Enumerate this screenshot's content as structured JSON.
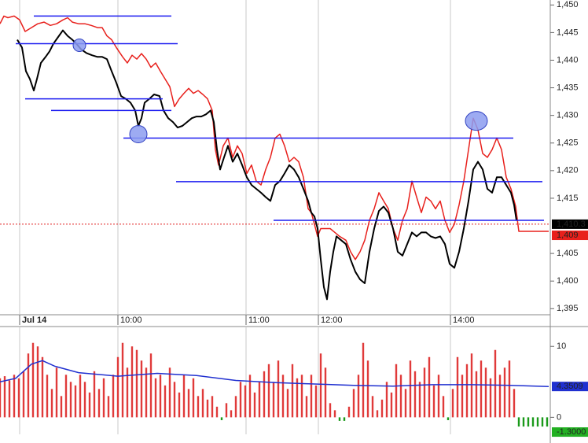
{
  "chart_data": [
    {
      "type": "line",
      "xlim": [
        0,
        350
      ],
      "ylim": [
        1393.9,
        1450.9
      ],
      "xticks": [
        {
          "value": 12.5,
          "label": "Jul 14"
        },
        {
          "value": 75,
          "label": "10:00"
        },
        {
          "value": 156.5,
          "label": "11:00"
        },
        {
          "value": 202.5,
          "label": "12:00"
        },
        {
          "value": 286.5,
          "label": "14:00"
        }
      ],
      "yticks": [
        {
          "value": 1395,
          "label": "1,395"
        },
        {
          "value": 1400,
          "label": "1,400"
        },
        {
          "value": 1405,
          "label": "1,405"
        },
        {
          "value": 1415,
          "label": "1,415"
        },
        {
          "value": 1420,
          "label": "1,420"
        },
        {
          "value": 1425,
          "label": "1,425"
        },
        {
          "value": 1430,
          "label": "1,430"
        },
        {
          "value": 1435,
          "label": "1,435"
        },
        {
          "value": 1440,
          "label": "1,440"
        },
        {
          "value": 1445,
          "label": "1,445"
        },
        {
          "value": 1450,
          "label": "1,450"
        }
      ],
      "grid": true,
      "series": [
        {
          "color": "#000000",
          "x": [
            11,
            14,
            16.5,
            19,
            21.5,
            23.5,
            26,
            29,
            31.5,
            34,
            37,
            40,
            43,
            46,
            48.5,
            51.5,
            55,
            58.5,
            62,
            65,
            68,
            71,
            74,
            77,
            80,
            83,
            86,
            88,
            90,
            92,
            95,
            98,
            101.5,
            104,
            107,
            110,
            113,
            116,
            119,
            122,
            125,
            128,
            131,
            134,
            136,
            138,
            140,
            142.5,
            145,
            148,
            151,
            154,
            157,
            160,
            163,
            166,
            169,
            172,
            175,
            178,
            181,
            184,
            187,
            190,
            193,
            196,
            198,
            200,
            202,
            204,
            206,
            208,
            210,
            212,
            214,
            217,
            220,
            223,
            226,
            229,
            232,
            235,
            238,
            241,
            244,
            247,
            250,
            253,
            256,
            259,
            262,
            265,
            268,
            271,
            274,
            277,
            280,
            283,
            286,
            289,
            292,
            295,
            298,
            301,
            304,
            307,
            310,
            313,
            316,
            319,
            322,
            325,
            327,
            328.5
          ],
          "values": [
            1443.7,
            1442.3,
            1438.0,
            1436.6,
            1434.5,
            1436.6,
            1439.5,
            1440.6,
            1441.6,
            1443.0,
            1444.2,
            1445.4,
            1444.4,
            1443.7,
            1443.0,
            1442.0,
            1441.3,
            1440.9,
            1440.6,
            1440.6,
            1440.2,
            1438.0,
            1435.9,
            1433.5,
            1433.0,
            1432.3,
            1430.9,
            1428.1,
            1429.5,
            1432.3,
            1433.0,
            1433.8,
            1433.5,
            1430.9,
            1429.5,
            1428.8,
            1427.8,
            1428.1,
            1428.8,
            1429.5,
            1429.8,
            1429.8,
            1430.2,
            1430.9,
            1428.8,
            1423.8,
            1420.2,
            1422.4,
            1424.5,
            1421.6,
            1423.1,
            1421.0,
            1418.8,
            1417.4,
            1416.7,
            1416.0,
            1415.2,
            1414.5,
            1417.4,
            1418.1,
            1419.5,
            1421.0,
            1420.2,
            1418.8,
            1416.7,
            1414.5,
            1412.4,
            1411.7,
            1409.5,
            1403.9,
            1398.9,
            1396.7,
            1401.7,
            1405.3,
            1408.1,
            1407.4,
            1406.7,
            1403.9,
            1401.7,
            1400.3,
            1399.6,
            1405.3,
            1409.5,
            1412.7,
            1413.5,
            1412.4,
            1409.5,
            1405.3,
            1404.6,
            1406.7,
            1408.8,
            1408.1,
            1408.8,
            1408.8,
            1408.1,
            1407.8,
            1408.1,
            1406.7,
            1403.1,
            1402.4,
            1405.3,
            1409.5,
            1414.5,
            1420.2,
            1421.6,
            1420.2,
            1416.7,
            1416.0,
            1418.8,
            1418.8,
            1417.4,
            1416.0,
            1413.8,
            1411.0
          ]
        },
        {
          "color": "#e8201c",
          "x": [
            0,
            2.5,
            5,
            9,
            12.5,
            16,
            20,
            24,
            28,
            32,
            36,
            40,
            43,
            46,
            50,
            54,
            58,
            62,
            65,
            68,
            71,
            74,
            78,
            81,
            84,
            87,
            90,
            93,
            96,
            99,
            102,
            105,
            108,
            111,
            114,
            117,
            120,
            123,
            126,
            129,
            132,
            135,
            137,
            139,
            142,
            145,
            148,
            151,
            154,
            157,
            160,
            163,
            166,
            169,
            172,
            175,
            178,
            181,
            184,
            187,
            190,
            193,
            196,
            198,
            200,
            202,
            204,
            207,
            210,
            213,
            216,
            220,
            223,
            226,
            229,
            232,
            235,
            238,
            241,
            244,
            247,
            250,
            253,
            256,
            259,
            262,
            265,
            268,
            271,
            274,
            277,
            280,
            283,
            286,
            289,
            292,
            295,
            298,
            301,
            304,
            307,
            310,
            313,
            316,
            319,
            322,
            325,
            328,
            330,
            349
          ],
          "values": [
            1446.6,
            1448.0,
            1447.7,
            1448.0,
            1447.3,
            1445.2,
            1445.9,
            1446.6,
            1446.9,
            1446.3,
            1446.6,
            1447.3,
            1447.7,
            1446.9,
            1446.6,
            1446.6,
            1446.3,
            1445.9,
            1445.9,
            1444.4,
            1443.7,
            1442.3,
            1440.6,
            1439.5,
            1440.9,
            1440.2,
            1441.2,
            1440.2,
            1438.7,
            1439.5,
            1438.0,
            1436.6,
            1435.2,
            1431.6,
            1433.0,
            1434.0,
            1434.9,
            1434.0,
            1434.5,
            1433.8,
            1433.0,
            1430.9,
            1423.8,
            1421.0,
            1424.5,
            1425.9,
            1422.4,
            1424.5,
            1423.1,
            1419.5,
            1421.0,
            1418.1,
            1417.4,
            1420.2,
            1422.4,
            1425.9,
            1426.6,
            1424.5,
            1421.6,
            1422.4,
            1421.6,
            1418.8,
            1413.1,
            1412.4,
            1410.3,
            1408.1,
            1409.5,
            1409.5,
            1409.5,
            1408.8,
            1408.1,
            1407.4,
            1405.3,
            1403.9,
            1405.3,
            1407.4,
            1411.0,
            1413.1,
            1416.0,
            1414.5,
            1413.1,
            1409.5,
            1407.4,
            1411.0,
            1413.1,
            1418.1,
            1415.2,
            1412.4,
            1415.2,
            1414.5,
            1413.1,
            1414.5,
            1411.0,
            1408.8,
            1410.3,
            1413.8,
            1418.1,
            1423.8,
            1429.5,
            1427.4,
            1423.1,
            1422.4,
            1423.8,
            1425.9,
            1423.8,
            1418.8,
            1416.7,
            1413.5,
            1409.0,
            1409.0
          ]
        }
      ],
      "levels": {
        "color": "#1c1cf0",
        "items": [
          {
            "value": 1448.0,
            "x": [
              21.5,
              109
            ]
          },
          {
            "value": 1443.0,
            "x": [
              10,
              113
            ]
          },
          {
            "value": 1433.0,
            "x": [
              16,
              103.5
            ]
          },
          {
            "value": 1430.9,
            "x": [
              32.5,
              109
            ]
          },
          {
            "value": 1425.9,
            "x": [
              78.5,
              326.5
            ]
          },
          {
            "value": 1418.0,
            "x": [
              112,
              345
            ]
          },
          {
            "value": 1411.0,
            "x": [
              174,
              346
            ]
          }
        ]
      },
      "markers": {
        "color": "#8c9cf0",
        "items": [
          {
            "x": 50.5,
            "y": 1442.7
          },
          {
            "x": 88,
            "y": 1426.6
          },
          {
            "x": 303,
            "y": 1429.0
          }
        ]
      },
      "dotted_line": {
        "value": 1410.3,
        "color": "#e02020"
      },
      "tags": [
        {
          "value": 1410.3,
          "label": "1,410.3",
          "color": "#000000",
          "text_color": "#ffffff"
        },
        {
          "value": 1409,
          "label": "1,409",
          "color": "#e8201c",
          "text_color": "#300000"
        }
      ]
    },
    {
      "type": "bar",
      "xlim": [
        0,
        350
      ],
      "ylim": [
        -2.4,
        12.8
      ],
      "yticks": [
        0,
        10
      ],
      "bar_color": "#e03a3a",
      "negative_color": "#1a9a1a",
      "x": [
        0,
        3,
        6,
        9,
        12,
        15,
        18,
        21,
        24,
        27,
        30,
        33,
        36,
        39,
        42,
        45,
        48,
        51,
        54,
        57,
        60,
        63,
        66,
        69,
        72,
        75,
        78,
        81,
        84,
        87,
        90,
        93,
        96,
        99,
        102,
        105,
        108,
        111,
        114,
        117,
        120,
        123,
        126,
        129,
        132,
        135,
        138,
        141,
        144,
        147,
        150,
        153,
        156,
        159,
        162,
        165,
        168,
        171,
        174,
        177,
        180,
        183,
        186,
        189,
        192,
        195,
        198,
        201,
        204,
        207,
        210,
        213,
        216,
        219,
        222,
        225,
        228,
        231,
        234,
        237,
        240,
        243,
        246,
        249,
        252,
        255,
        258,
        261,
        264,
        267,
        270,
        273,
        276,
        279,
        282,
        285,
        288,
        291,
        294,
        297,
        300,
        303,
        306,
        309,
        312,
        315,
        318,
        321,
        324,
        327,
        330,
        333,
        336,
        339,
        342,
        345,
        348
      ],
      "values": [
        5.5,
        5.8,
        5.2,
        6.0,
        5.5,
        6.5,
        9,
        10.5,
        10,
        8.5,
        6,
        4,
        7,
        3,
        6,
        5,
        4.5,
        6,
        5,
        3.5,
        6.5,
        4,
        5.5,
        3,
        6,
        8.5,
        10.5,
        7,
        10,
        9.5,
        8,
        7,
        9,
        5.5,
        6,
        4.5,
        7,
        5,
        3.5,
        6,
        4,
        5.5,
        3,
        4,
        2.5,
        3,
        1.5,
        -0.4,
        2,
        1,
        3,
        5,
        4.5,
        6,
        3.5,
        5,
        6.5,
        7.5,
        5,
        8,
        6,
        4,
        7.5,
        5.5,
        6,
        3,
        6,
        4.5,
        9,
        7,
        2,
        1,
        -0.5,
        -0.5,
        1.5,
        4,
        6,
        10.5,
        8,
        3,
        1,
        2.5,
        5,
        3.5,
        7.5,
        6,
        4,
        8,
        6.5,
        5,
        7,
        8.5,
        4.5,
        6,
        3,
        -0.4,
        4,
        8.5,
        6,
        7.5,
        9,
        6.5,
        8,
        7,
        5.5,
        9.5,
        6,
        7,
        8,
        4,
        -1.3,
        -1.3,
        -1.3,
        -1.3,
        -1.3,
        -1.3,
        -1.3
      ],
      "line": {
        "color": "#2030d0",
        "x": [
          0,
          10,
          20,
          27,
          35,
          50,
          75,
          100,
          125,
          150,
          175,
          200,
          225,
          250,
          275,
          300,
          325,
          349
        ],
        "values": [
          5.0,
          5.5,
          7.5,
          8.0,
          7.2,
          6.3,
          5.8,
          6.2,
          5.9,
          5.2,
          4.9,
          4.7,
          4.5,
          4.4,
          4.6,
          4.6,
          4.5,
          4.35
        ]
      },
      "tags": [
        {
          "value": 4.3509,
          "label": "4.3509",
          "color": "#2030d0",
          "text_color": "#ffffff"
        },
        {
          "value": -1.3,
          "label": "-1.3000",
          "color": "#22b022",
          "text_color": "#002000"
        }
      ]
    }
  ]
}
